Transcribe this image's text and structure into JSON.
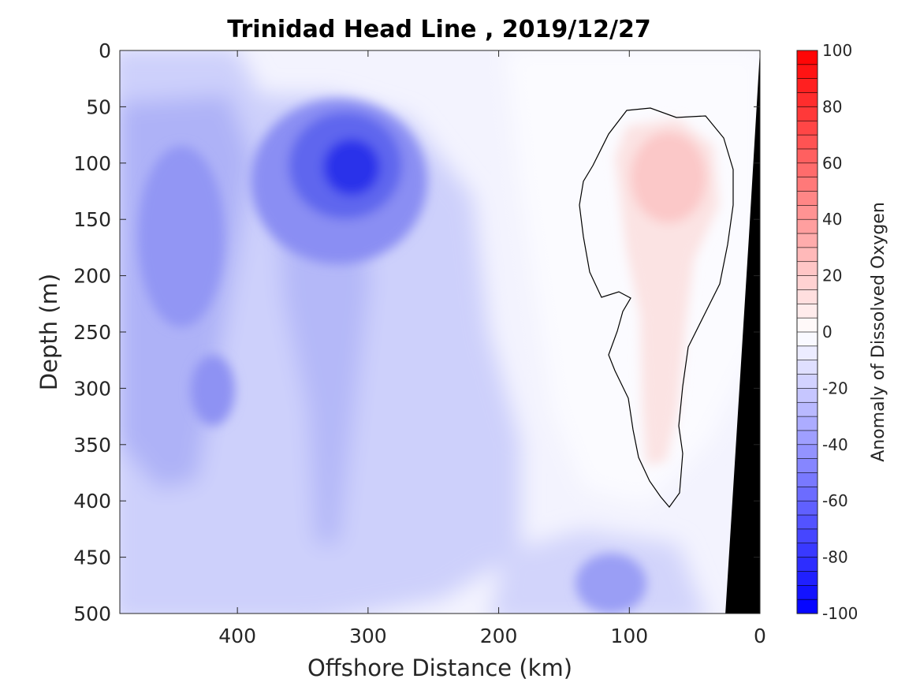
{
  "chart_data": {
    "type": "heatmap",
    "title": "Trinidad Head Line , 2019/12/27",
    "xlabel": "Offshore Distance (km)",
    "ylabel": "Depth (m)",
    "xlim": [
      490,
      0
    ],
    "ylim": [
      0,
      500
    ],
    "x_reversed": true,
    "y_reversed": true,
    "xticks": [
      "400",
      "300",
      "200",
      "100",
      "0"
    ],
    "xtick_values": [
      400,
      300,
      200,
      100,
      0
    ],
    "yticks": [
      "0",
      "50",
      "100",
      "150",
      "200",
      "250",
      "300",
      "350",
      "400",
      "450",
      "500"
    ],
    "ytick_values": [
      0,
      50,
      100,
      150,
      200,
      250,
      300,
      350,
      400,
      450,
      500
    ],
    "colorbar": {
      "label": "Anomaly of Dissolved Oxygen",
      "range": [
        -100,
        100
      ],
      "ticks": [
        "100",
        "80",
        "60",
        "40",
        "20",
        "0",
        "-20",
        "-40",
        "-60",
        "-80",
        "-100"
      ],
      "tick_values": [
        100,
        80,
        60,
        40,
        20,
        0,
        -20,
        -40,
        -60,
        -80,
        -100
      ],
      "levels": 40,
      "low_color": "#0000ff",
      "mid_color": "#ffffff",
      "high_color": "#ff0000"
    },
    "features": [
      {
        "name": "min-anomaly",
        "x_km": 310,
        "depth_m": 105,
        "value": -85
      },
      {
        "name": "max-anomaly",
        "x_km": 85,
        "depth_m": 100,
        "value": 20
      },
      {
        "name": "deep-low",
        "x_km": 115,
        "depth_m": 480,
        "value": -45
      }
    ],
    "zero_contour_shown": true,
    "bathymetry_color": "#000000"
  }
}
